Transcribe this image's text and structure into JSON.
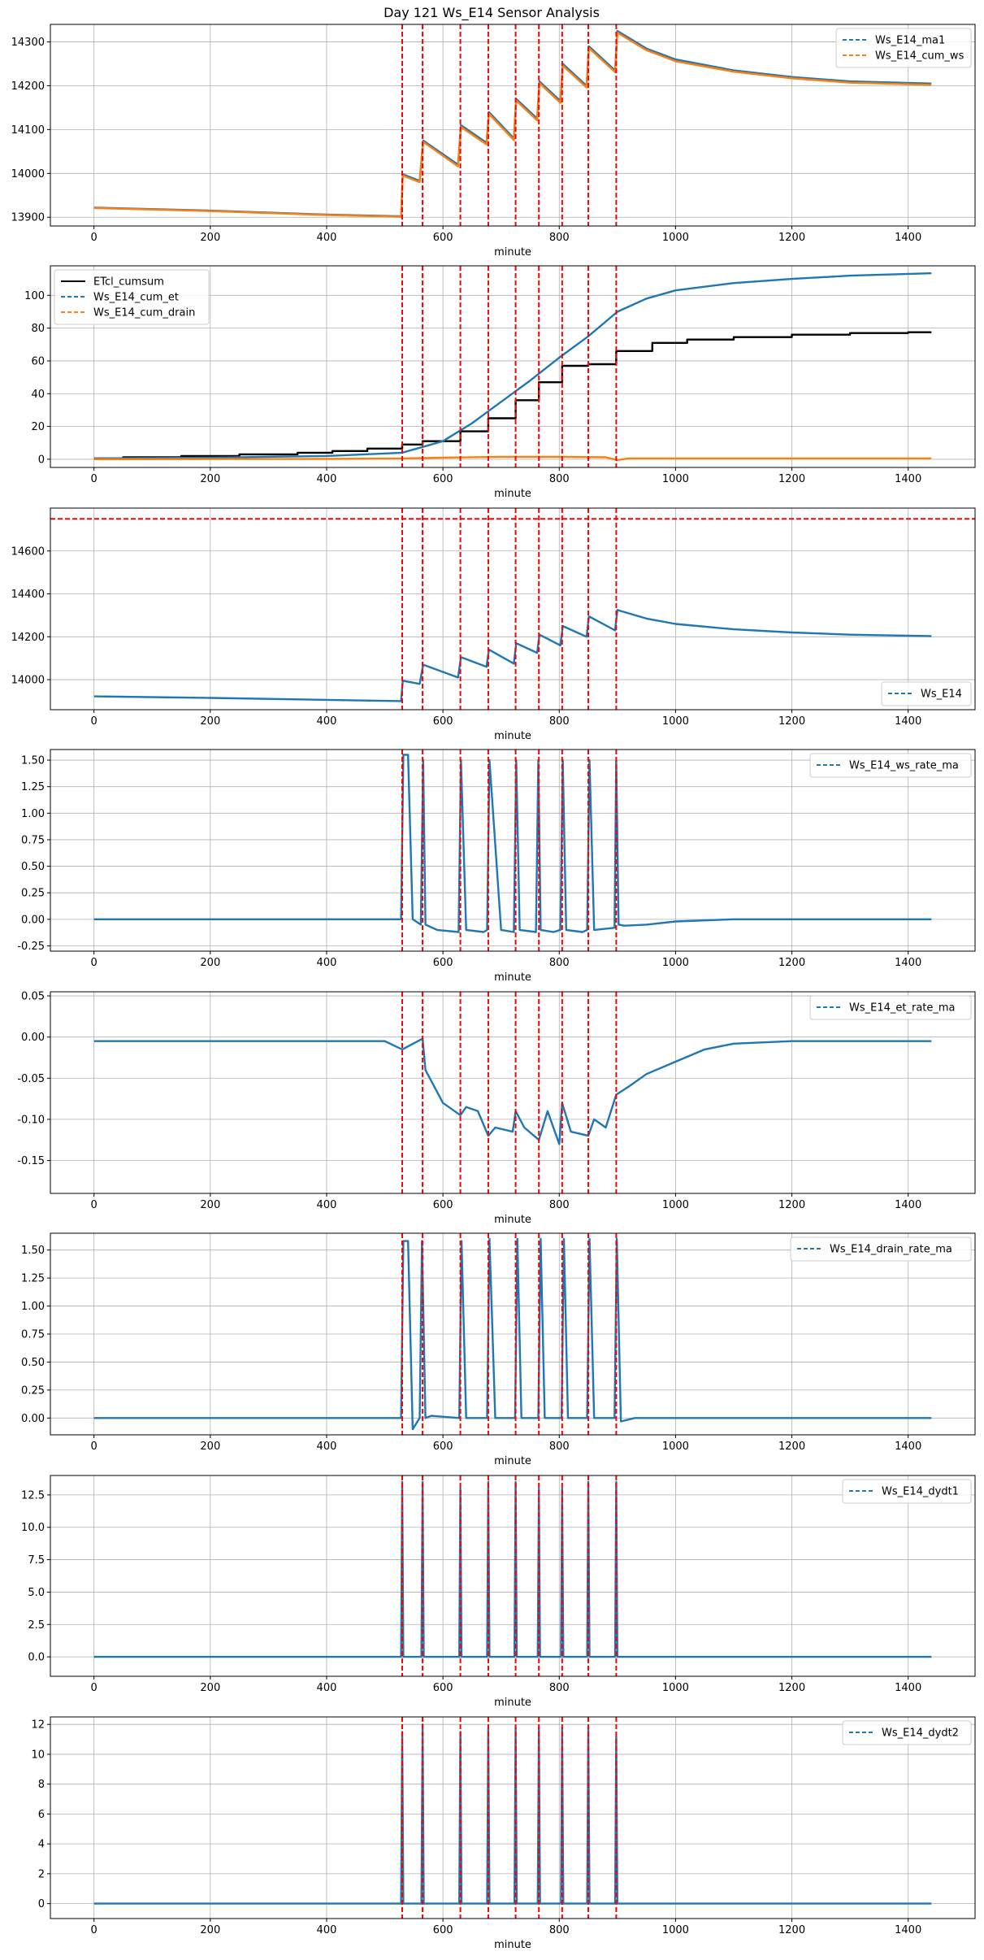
{
  "figure": {
    "title": "Day 121 Ws_E14 Sensor Analysis"
  },
  "colors": {
    "blue": "#1f77b4",
    "orange": "#ff7f0e",
    "black": "#000000",
    "red": "#ff0000"
  },
  "events": [
    530,
    565,
    630,
    678,
    725,
    765,
    805,
    850,
    898
  ],
  "chart_data": [
    {
      "type": "line",
      "xlabel": "minute",
      "xlim": [
        -75,
        1515
      ],
      "xticks": [
        0,
        200,
        400,
        600,
        800,
        1000,
        1200,
        1400
      ],
      "ylim": [
        13880,
        14340
      ],
      "yticks": [
        13900,
        14000,
        14100,
        14200,
        14300
      ],
      "legend": "top-right",
      "hline": null,
      "series": [
        {
          "name": "Ws_E14_ma1",
          "color": "blue",
          "dashed": true,
          "x": [
            0,
            200,
            400,
            528,
            531,
            560,
            566,
            626,
            631,
            675,
            679,
            722,
            726,
            762,
            766,
            802,
            806,
            847,
            851,
            896,
            900,
            950,
            1000,
            1100,
            1200,
            1300,
            1440
          ],
          "y": [
            13922,
            13915,
            13906,
            13902,
            13998,
            13983,
            14075,
            14020,
            14110,
            14070,
            14140,
            14080,
            14170,
            14125,
            14210,
            14165,
            14250,
            14200,
            14290,
            14235,
            14325,
            14285,
            14260,
            14235,
            14220,
            14210,
            14205
          ]
        },
        {
          "name": "Ws_E14_cum_ws",
          "color": "orange",
          "dashed": true,
          "x": [
            0,
            200,
            400,
            528,
            531,
            560,
            566,
            626,
            631,
            675,
            679,
            722,
            726,
            762,
            766,
            802,
            806,
            847,
            851,
            896,
            900,
            950,
            1000,
            1100,
            1200,
            1300,
            1440
          ],
          "y": [
            13921,
            13914,
            13905,
            13901,
            13995,
            13980,
            14072,
            14016,
            14106,
            14066,
            14136,
            14076,
            14166,
            14121,
            14206,
            14161,
            14246,
            14196,
            14286,
            14231,
            14321,
            14281,
            14256,
            14232,
            14217,
            14207,
            14202
          ]
        }
      ]
    },
    {
      "type": "line",
      "xlabel": "minute",
      "xlim": [
        -75,
        1515
      ],
      "xticks": [
        0,
        200,
        400,
        600,
        800,
        1000,
        1200,
        1400
      ],
      "ylim": [
        -5,
        118
      ],
      "yticks": [
        0,
        20,
        40,
        60,
        80,
        100
      ],
      "legend": "top-left",
      "hline": null,
      "series": [
        {
          "name": "ETcl_cumsum",
          "color": "black",
          "dashed": false,
          "step": true,
          "x": [
            0,
            50,
            150,
            250,
            350,
            410,
            470,
            530,
            565,
            630,
            678,
            725,
            765,
            805,
            850,
            898,
            960,
            1020,
            1100,
            1200,
            1300,
            1400,
            1440
          ],
          "y": [
            0.5,
            1.2,
            2.0,
            3.0,
            4.0,
            5.0,
            6.5,
            9.0,
            11.0,
            17.0,
            25.0,
            36.0,
            47.0,
            57.0,
            58.0,
            66.0,
            71.0,
            73.0,
            74.5,
            76.0,
            77.0,
            77.5,
            77.5
          ]
        },
        {
          "name": "Ws_E14_cum_et",
          "color": "blue",
          "dashed": true,
          "step": false,
          "x": [
            0,
            200,
            400,
            530,
            600,
            650,
            700,
            750,
            800,
            850,
            900,
            950,
            1000,
            1100,
            1200,
            1300,
            1440
          ],
          "y": [
            0.5,
            1.0,
            2.0,
            4.0,
            11.0,
            22.0,
            35.0,
            48.0,
            62.0,
            75.0,
            90.0,
            98.0,
            103.0,
            107.5,
            110.0,
            112.0,
            113.5
          ]
        },
        {
          "name": "Ws_E14_cum_drain",
          "color": "orange",
          "dashed": true,
          "step": false,
          "x": [
            0,
            400,
            530,
            600,
            700,
            800,
            880,
            900,
            920,
            1000,
            1440
          ],
          "y": [
            0,
            0.2,
            0.5,
            1.0,
            1.5,
            1.5,
            1.2,
            -0.5,
            0.5,
            0.5,
            0.5
          ]
        }
      ]
    },
    {
      "type": "line",
      "xlabel": "minute",
      "xlim": [
        -75,
        1515
      ],
      "xticks": [
        0,
        200,
        400,
        600,
        800,
        1000,
        1200,
        1400
      ],
      "ylim": [
        13860,
        14800
      ],
      "yticks": [
        14000,
        14200,
        14400,
        14600
      ],
      "legend": "bottom-right",
      "hline": 14750,
      "series": [
        {
          "name": "Ws_E14",
          "color": "blue",
          "dashed": true,
          "x": [
            0,
            200,
            400,
            528,
            531,
            560,
            566,
            626,
            631,
            675,
            679,
            722,
            726,
            762,
            766,
            802,
            806,
            847,
            851,
            896,
            900,
            950,
            1000,
            1100,
            1200,
            1300,
            1440
          ],
          "y": [
            13922,
            13915,
            13906,
            13900,
            13995,
            13980,
            14070,
            14010,
            14105,
            14060,
            14140,
            14075,
            14170,
            14125,
            14210,
            14160,
            14250,
            14200,
            14295,
            14230,
            14325,
            14285,
            14260,
            14235,
            14220,
            14210,
            14203
          ]
        }
      ]
    },
    {
      "type": "line",
      "xlabel": "minute",
      "xlim": [
        -75,
        1515
      ],
      "xticks": [
        0,
        200,
        400,
        600,
        800,
        1000,
        1200,
        1400
      ],
      "ylim": [
        -0.3,
        1.6
      ],
      "yticks": [
        -0.25,
        0.0,
        0.25,
        0.5,
        0.75,
        1.0,
        1.25,
        1.5
      ],
      "ytick_labels": [
        "-0.25",
        "0.00",
        "0.25",
        "0.50",
        "0.75",
        "1.00",
        "1.25",
        "1.50"
      ],
      "legend": "top-right",
      "hline": null,
      "series": [
        {
          "name": "Ws_E14_ws_rate_ma",
          "color": "blue",
          "dashed": true,
          "x": [
            0,
            520,
            528,
            532,
            540,
            548,
            562,
            566,
            570,
            590,
            627,
            631,
            640,
            670,
            676,
            680,
            700,
            722,
            726,
            732,
            760,
            764,
            768,
            790,
            802,
            806,
            812,
            840,
            848,
            852,
            860,
            895,
            898,
            902,
            912,
            950,
            1000,
            1100,
            1200,
            1440
          ],
          "y": [
            0,
            0,
            0,
            1.55,
            1.55,
            0,
            -0.05,
            1.5,
            -0.05,
            -0.1,
            -0.12,
            1.5,
            -0.1,
            -0.12,
            -0.1,
            1.5,
            -0.1,
            -0.12,
            1.5,
            -0.1,
            -0.12,
            1.5,
            -0.1,
            -0.12,
            -0.1,
            1.5,
            -0.1,
            -0.12,
            -0.1,
            1.5,
            -0.1,
            -0.08,
            1.5,
            -0.05,
            -0.06,
            -0.05,
            -0.02,
            0,
            0,
            0
          ]
        }
      ]
    },
    {
      "type": "line",
      "xlabel": "minute",
      "xlim": [
        -75,
        1515
      ],
      "xticks": [
        0,
        200,
        400,
        600,
        800,
        1000,
        1200,
        1400
      ],
      "ylim": [
        -0.19,
        0.055
      ],
      "yticks": [
        -0.15,
        -0.1,
        -0.05,
        0.0,
        0.05
      ],
      "ytick_labels": [
        "-0.15",
        "-0.10",
        "-0.05",
        "0.00",
        "0.05"
      ],
      "legend": "top-right",
      "hline": null,
      "series": [
        {
          "name": "Ws_E14_et_rate_ma",
          "color": "blue",
          "dashed": true,
          "x": [
            0,
            100,
            200,
            300,
            400,
            500,
            530,
            565,
            570,
            600,
            630,
            640,
            660,
            678,
            690,
            720,
            725,
            740,
            765,
            780,
            800,
            805,
            820,
            850,
            860,
            880,
            898,
            920,
            950,
            1000,
            1050,
            1100,
            1200,
            1300,
            1440
          ],
          "y": [
            -0.005,
            -0.005,
            -0.005,
            -0.005,
            -0.005,
            -0.005,
            -0.015,
            -0.002,
            -0.04,
            -0.08,
            -0.095,
            -0.085,
            -0.09,
            -0.12,
            -0.11,
            -0.115,
            -0.09,
            -0.11,
            -0.125,
            -0.09,
            -0.13,
            -0.08,
            -0.115,
            -0.12,
            -0.1,
            -0.11,
            -0.07,
            -0.06,
            -0.045,
            -0.03,
            -0.015,
            -0.008,
            -0.005,
            -0.005,
            -0.005
          ]
        }
      ]
    },
    {
      "type": "line",
      "xlabel": "minute",
      "xlim": [
        -75,
        1515
      ],
      "xticks": [
        0,
        200,
        400,
        600,
        800,
        1000,
        1200,
        1400
      ],
      "ylim": [
        -0.15,
        1.65
      ],
      "yticks": [
        0.0,
        0.25,
        0.5,
        0.75,
        1.0,
        1.25,
        1.5
      ],
      "ytick_labels": [
        "0.00",
        "0.25",
        "0.50",
        "0.75",
        "1.00",
        "1.25",
        "1.50"
      ],
      "legend": "top-right",
      "hline": null,
      "series": [
        {
          "name": "Ws_E14_drain_rate_ma",
          "color": "blue",
          "dashed": true,
          "x": [
            0,
            520,
            528,
            532,
            540,
            548,
            560,
            564,
            570,
            580,
            628,
            632,
            640,
            676,
            680,
            690,
            724,
            728,
            735,
            764,
            768,
            775,
            804,
            808,
            815,
            848,
            852,
            860,
            895,
            899,
            906,
            930,
            1000,
            1440
          ],
          "y": [
            0,
            0,
            0,
            1.58,
            1.58,
            -0.1,
            0,
            1.58,
            0,
            0.02,
            0,
            1.58,
            0,
            0,
            1.6,
            0,
            0,
            1.6,
            0,
            0,
            1.6,
            0,
            0,
            1.6,
            0,
            0,
            1.6,
            0,
            0,
            1.6,
            -0.03,
            0,
            0,
            0
          ]
        }
      ]
    },
    {
      "type": "line",
      "xlabel": "minute",
      "xlim": [
        -75,
        1515
      ],
      "xticks": [
        0,
        200,
        400,
        600,
        800,
        1000,
        1200,
        1400
      ],
      "ylim": [
        -1.5,
        14.0
      ],
      "yticks": [
        0.0,
        2.5,
        5.0,
        7.5,
        10.0,
        12.5
      ],
      "ytick_labels": [
        "0.0",
        "2.5",
        "5.0",
        "7.5",
        "10.0",
        "12.5"
      ],
      "legend": "top-right",
      "hline": null,
      "series": [
        {
          "name": "Ws_E14_dydt1",
          "color": "blue",
          "dashed": true,
          "x": [
            0,
            528,
            530,
            532,
            563,
            565,
            567,
            628,
            630,
            632,
            676,
            678,
            680,
            723,
            725,
            727,
            763,
            765,
            767,
            803,
            805,
            807,
            848,
            850,
            852,
            896,
            898,
            900,
            1440
          ],
          "y": [
            0,
            0,
            13.5,
            0,
            0,
            13.5,
            0,
            0,
            13,
            0,
            0,
            13.5,
            0,
            0,
            13.5,
            0,
            0,
            13,
            0,
            0,
            13,
            0,
            0,
            13.5,
            0,
            0,
            13.5,
            0,
            0
          ]
        }
      ]
    },
    {
      "type": "line",
      "xlabel": "minute",
      "xlim": [
        -75,
        1515
      ],
      "xticks": [
        0,
        200,
        400,
        600,
        800,
        1000,
        1200,
        1400
      ],
      "ylim": [
        -1.0,
        12.5
      ],
      "yticks": [
        0,
        2,
        4,
        6,
        8,
        10,
        12
      ],
      "legend": "top-right",
      "hline": null,
      "series": [
        {
          "name": "Ws_E14_dydt2",
          "color": "blue",
          "dashed": true,
          "x": [
            0,
            528,
            530,
            532,
            563,
            565,
            567,
            628,
            630,
            632,
            676,
            678,
            680,
            723,
            725,
            727,
            763,
            765,
            767,
            803,
            805,
            807,
            848,
            850,
            852,
            896,
            898,
            900,
            1440
          ],
          "y": [
            0,
            0,
            11.5,
            0,
            0,
            12,
            0,
            0,
            11.5,
            0,
            0,
            11.8,
            0,
            0,
            11.8,
            0,
            0,
            11.8,
            0,
            0,
            11.8,
            0,
            0,
            11.8,
            0,
            0,
            11.2,
            0,
            0
          ]
        }
      ]
    }
  ]
}
